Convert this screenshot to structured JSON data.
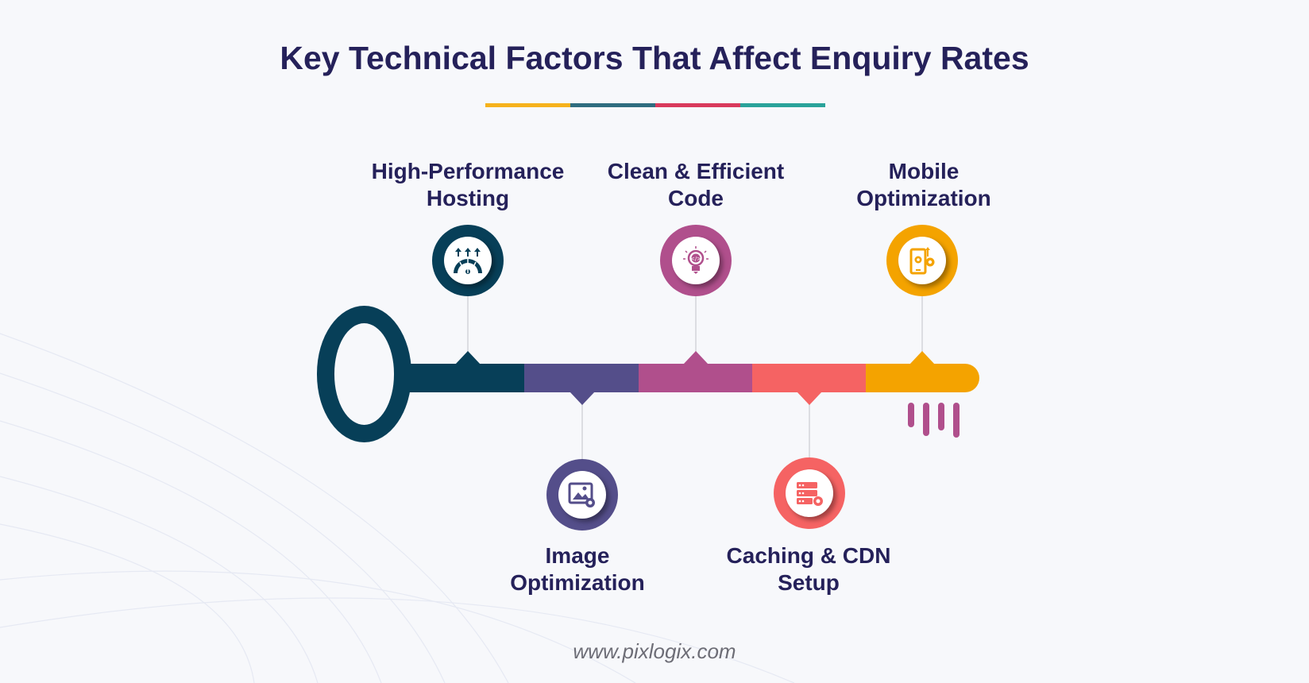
{
  "title": "Key Technical Factors That Affect Enquiry Rates",
  "title_bar_colors": [
    "#f6b21b",
    "#2f6d80",
    "#d93a5c",
    "#2aa39a"
  ],
  "factors": [
    {
      "line1": "High-Performance",
      "line2": "Hosting",
      "position": "top",
      "color": "#073f58",
      "icon": "speedometer-arrows-icon"
    },
    {
      "line1": "Image",
      "line2": "Optimization",
      "position": "bottom",
      "color": "#544e8a",
      "icon": "image-gear-icon"
    },
    {
      "line1": "Clean & Efficient",
      "line2": "Code",
      "position": "top",
      "color": "#b04f8c",
      "icon": "lightbulb-code-icon"
    },
    {
      "line1": "Caching & CDN",
      "line2": "Setup",
      "position": "bottom",
      "color": "#f56363",
      "icon": "server-gear-icon"
    },
    {
      "line1": "Mobile",
      "line2": "Optimization",
      "position": "top",
      "color": "#f4a300",
      "icon": "mobile-gear-icon"
    }
  ],
  "footer": "www.pixlogix.com"
}
